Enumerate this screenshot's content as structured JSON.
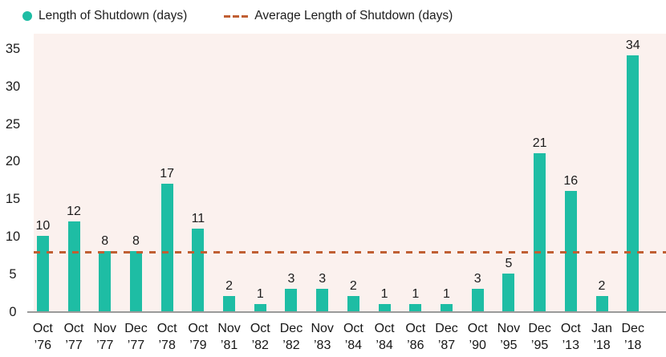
{
  "legend": {
    "bars_label": "Length of Shutdown (days)",
    "average_label": "Average Length of Shutdown (days)"
  },
  "colors": {
    "bar": "#1EBDA4",
    "average_line": "#C05F33",
    "plot_background": "#FBF1EE",
    "axis_line": "#9A9A9A",
    "text": "#1D1D1D"
  },
  "chart_data": {
    "type": "bar",
    "title": "",
    "xlabel": "",
    "ylabel": "",
    "categories": [
      "Oct ’76",
      "Oct ’77",
      "Nov ’77",
      "Dec ’77",
      "Oct ’78",
      "Oct ’79",
      "Nov ’81",
      "Oct ’82",
      "Dec ’82",
      "Nov ’83",
      "Oct ’84",
      "Oct ’84",
      "Oct ’86",
      "Dec ’87",
      "Oct ’90",
      "Nov ’95",
      "Dec ’95",
      "Oct ’13",
      "Jan ’18",
      "Dec ’18"
    ],
    "values": [
      10,
      12,
      8,
      8,
      17,
      11,
      2,
      1,
      3,
      3,
      2,
      1,
      1,
      1,
      3,
      5,
      21,
      16,
      2,
      34
    ],
    "bar_value_labels": true,
    "average_line_value": 8,
    "yticks": [
      0,
      5,
      10,
      15,
      20,
      25,
      30,
      35
    ],
    "ylim": [
      0,
      37
    ],
    "grid": false,
    "legend_position": "top-left",
    "series_name": "Length of Shutdown (days)",
    "average_series_name": "Average Length of Shutdown (days)"
  }
}
